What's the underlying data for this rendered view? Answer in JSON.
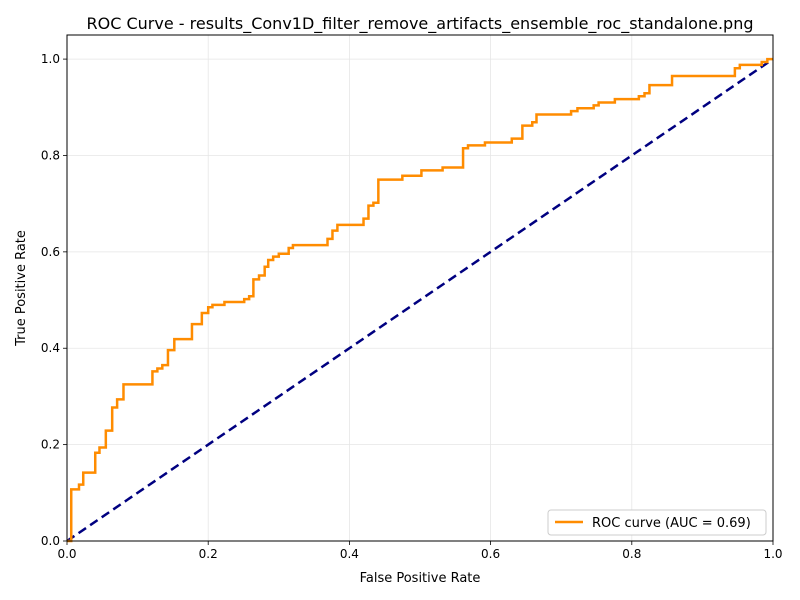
{
  "chart_data": {
    "type": "line",
    "title": "ROC Curve - results_Conv1D_filter_remove_artifacts_ensemble_roc_standalone.png",
    "xlabel": "False Positive Rate",
    "ylabel": "True Positive Rate",
    "xlim": [
      0.0,
      1.0
    ],
    "ylim": [
      0.0,
      1.05
    ],
    "x_ticks": [
      "0.0",
      "0.2",
      "0.4",
      "0.6",
      "0.8",
      "1.0"
    ],
    "y_ticks": [
      "0.0",
      "0.2",
      "0.4",
      "0.6",
      "0.8",
      "1.0"
    ],
    "grid": true,
    "legend_position": "lower-right",
    "series": [
      {
        "name": "ROC curve (AUC = 0.69)",
        "color": "#ff8c00",
        "style": "solid-step",
        "points": [
          [
            0.0,
            0.0
          ],
          [
            0.006,
            0.0
          ],
          [
            0.006,
            0.107
          ],
          [
            0.017,
            0.107
          ],
          [
            0.017,
            0.117
          ],
          [
            0.023,
            0.117
          ],
          [
            0.023,
            0.142
          ],
          [
            0.04,
            0.142
          ],
          [
            0.04,
            0.183
          ],
          [
            0.046,
            0.183
          ],
          [
            0.046,
            0.194
          ],
          [
            0.055,
            0.194
          ],
          [
            0.055,
            0.229
          ],
          [
            0.064,
            0.229
          ],
          [
            0.064,
            0.277
          ],
          [
            0.071,
            0.277
          ],
          [
            0.071,
            0.294
          ],
          [
            0.08,
            0.294
          ],
          [
            0.08,
            0.325
          ],
          [
            0.121,
            0.325
          ],
          [
            0.121,
            0.352
          ],
          [
            0.128,
            0.352
          ],
          [
            0.128,
            0.358
          ],
          [
            0.135,
            0.358
          ],
          [
            0.135,
            0.365
          ],
          [
            0.143,
            0.365
          ],
          [
            0.143,
            0.396
          ],
          [
            0.152,
            0.396
          ],
          [
            0.152,
            0.419
          ],
          [
            0.177,
            0.419
          ],
          [
            0.177,
            0.45
          ],
          [
            0.191,
            0.45
          ],
          [
            0.191,
            0.473
          ],
          [
            0.2,
            0.473
          ],
          [
            0.2,
            0.485
          ],
          [
            0.206,
            0.485
          ],
          [
            0.206,
            0.49
          ],
          [
            0.223,
            0.49
          ],
          [
            0.223,
            0.496
          ],
          [
            0.251,
            0.496
          ],
          [
            0.251,
            0.502
          ],
          [
            0.258,
            0.502
          ],
          [
            0.258,
            0.508
          ],
          [
            0.264,
            0.508
          ],
          [
            0.264,
            0.543
          ],
          [
            0.272,
            0.543
          ],
          [
            0.272,
            0.551
          ],
          [
            0.28,
            0.551
          ],
          [
            0.28,
            0.569
          ],
          [
            0.285,
            0.569
          ],
          [
            0.285,
            0.583
          ],
          [
            0.292,
            0.583
          ],
          [
            0.292,
            0.59
          ],
          [
            0.3,
            0.59
          ],
          [
            0.3,
            0.596
          ],
          [
            0.314,
            0.596
          ],
          [
            0.314,
            0.608
          ],
          [
            0.32,
            0.608
          ],
          [
            0.32,
            0.614
          ],
          [
            0.369,
            0.614
          ],
          [
            0.369,
            0.627
          ],
          [
            0.376,
            0.627
          ],
          [
            0.376,
            0.644
          ],
          [
            0.383,
            0.644
          ],
          [
            0.383,
            0.656
          ],
          [
            0.42,
            0.656
          ],
          [
            0.42,
            0.669
          ],
          [
            0.427,
            0.669
          ],
          [
            0.427,
            0.696
          ],
          [
            0.434,
            0.696
          ],
          [
            0.434,
            0.702
          ],
          [
            0.441,
            0.702
          ],
          [
            0.441,
            0.75
          ],
          [
            0.475,
            0.75
          ],
          [
            0.475,
            0.758
          ],
          [
            0.502,
            0.758
          ],
          [
            0.502,
            0.769
          ],
          [
            0.532,
            0.769
          ],
          [
            0.532,
            0.775
          ],
          [
            0.561,
            0.775
          ],
          [
            0.561,
            0.815
          ],
          [
            0.568,
            0.815
          ],
          [
            0.568,
            0.821
          ],
          [
            0.592,
            0.821
          ],
          [
            0.592,
            0.827
          ],
          [
            0.63,
            0.827
          ],
          [
            0.63,
            0.835
          ],
          [
            0.645,
            0.835
          ],
          [
            0.645,
            0.862
          ],
          [
            0.659,
            0.862
          ],
          [
            0.659,
            0.869
          ],
          [
            0.665,
            0.869
          ],
          [
            0.665,
            0.885
          ],
          [
            0.714,
            0.885
          ],
          [
            0.714,
            0.892
          ],
          [
            0.723,
            0.892
          ],
          [
            0.723,
            0.898
          ],
          [
            0.746,
            0.898
          ],
          [
            0.746,
            0.904
          ],
          [
            0.753,
            0.904
          ],
          [
            0.753,
            0.91
          ],
          [
            0.776,
            0.91
          ],
          [
            0.776,
            0.917
          ],
          [
            0.81,
            0.917
          ],
          [
            0.81,
            0.923
          ],
          [
            0.818,
            0.923
          ],
          [
            0.818,
            0.929
          ],
          [
            0.825,
            0.929
          ],
          [
            0.825,
            0.946
          ],
          [
            0.857,
            0.946
          ],
          [
            0.857,
            0.965
          ],
          [
            0.946,
            0.965
          ],
          [
            0.946,
            0.981
          ],
          [
            0.953,
            0.981
          ],
          [
            0.953,
            0.988
          ],
          [
            0.984,
            0.988
          ],
          [
            0.984,
            0.994
          ],
          [
            0.992,
            0.994
          ],
          [
            0.992,
            1.0
          ],
          [
            1.0,
            1.0
          ]
        ]
      },
      {
        "color": "#000080",
        "style": "dashed",
        "points": [
          [
            0.0,
            0.0
          ],
          [
            1.0,
            1.0
          ]
        ]
      }
    ]
  }
}
